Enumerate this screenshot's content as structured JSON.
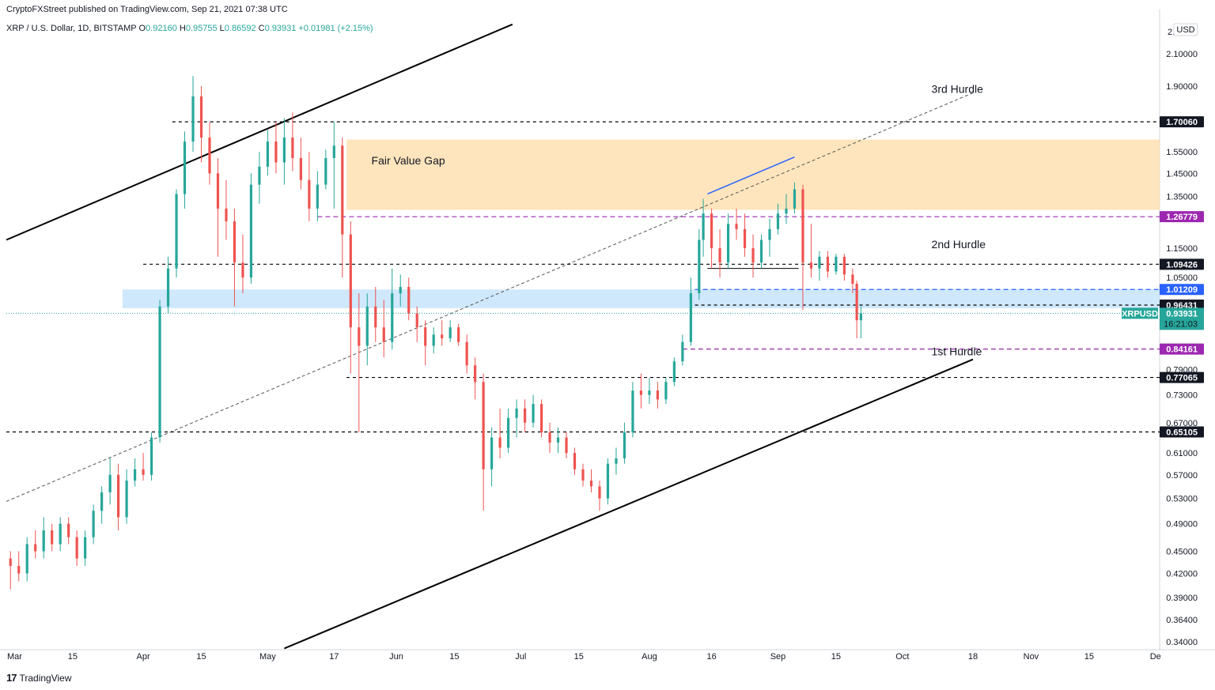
{
  "header": {
    "publisher": "CryptoFXStreet published on TradingView.com, Sep 21, 2021 07:38 UTC",
    "symbol": "XRP / U.S. Dollar, 1D, BITSTAMP",
    "ohlc": {
      "o_label": "O",
      "o": "0.92160",
      "h_label": "H",
      "h": "0.95755",
      "l_label": "L",
      "l": "0.86592",
      "c_label": "C",
      "c": "0.93931",
      "change": "+0.01981 (+2.15%)"
    }
  },
  "footer": {
    "brand": "TradingView",
    "logo": "17"
  },
  "currency_badge": "USD",
  "colors": {
    "up": "#26a69a",
    "down": "#ef5350",
    "fvg": "#ffe0b2",
    "blue_zone": "#bbdefb",
    "purple": "#9c27b0",
    "blue": "#2962ff"
  },
  "chart_data": {
    "type": "candlestick",
    "symbol": "XRPUSD",
    "scale": "log",
    "ylim": [
      0.335,
      2.35
    ],
    "xlim": [
      "2021-02-27",
      "2021-12-02"
    ],
    "y_ticks": [
      "2.10000",
      "1.90000",
      "1.55000",
      "1.45000",
      "1.35000",
      "1.15000",
      "1.05000",
      "0.79000",
      "0.73000",
      "0.67000",
      "0.61000",
      "0.57000",
      "0.53000",
      "0.49000",
      "0.45000",
      "0.42000",
      "0.39000",
      "0.36400",
      "0.34000"
    ],
    "y_tick_values": [
      2.1,
      1.9,
      1.55,
      1.45,
      1.35,
      1.15,
      1.05,
      0.79,
      0.73,
      0.67,
      0.61,
      0.57,
      0.53,
      0.49,
      0.45,
      0.42,
      0.39,
      0.364,
      0.34
    ],
    "top_tick": "2.",
    "x_ticks": [
      {
        "label": "Mar",
        "date": "2021-03-01"
      },
      {
        "label": "15",
        "date": "2021-03-15"
      },
      {
        "label": "Apr",
        "date": "2021-04-01"
      },
      {
        "label": "15",
        "date": "2021-04-15"
      },
      {
        "label": "May",
        "date": "2021-05-01"
      },
      {
        "label": "17",
        "date": "2021-05-17"
      },
      {
        "label": "Jun",
        "date": "2021-06-01"
      },
      {
        "label": "15",
        "date": "2021-06-15"
      },
      {
        "label": "Jul",
        "date": "2021-07-01"
      },
      {
        "label": "15",
        "date": "2021-07-15"
      },
      {
        "label": "Aug",
        "date": "2021-08-01"
      },
      {
        "label": "16",
        "date": "2021-08-16"
      },
      {
        "label": "Sep",
        "date": "2021-09-01"
      },
      {
        "label": "15",
        "date": "2021-09-15"
      },
      {
        "label": "Oct",
        "date": "2021-10-01"
      },
      {
        "label": "18",
        "date": "2021-10-18"
      },
      {
        "label": "Nov",
        "date": "2021-11-01"
      },
      {
        "label": "15",
        "date": "2021-11-15"
      },
      {
        "label": "De",
        "date": "2021-12-01"
      }
    ],
    "levels": [
      {
        "value": 1.7006,
        "label": "1.70060",
        "style": "black-dashed",
        "start": "2021-04-08"
      },
      {
        "value": 1.26779,
        "label": "1.26779",
        "style": "purple-dashed",
        "start": "2021-05-13"
      },
      {
        "value": 1.09426,
        "label": "1.09426",
        "style": "black-dashed",
        "start": "2021-04-01"
      },
      {
        "value": 1.01209,
        "label": "1.01209",
        "style": "blue-dashed",
        "start": "2021-08-12"
      },
      {
        "value": 0.96431,
        "label": "0.96431",
        "style": "black-dashed",
        "start": "2021-08-12"
      },
      {
        "value": 0.84161,
        "label": "0.84161",
        "style": "purple-dashed",
        "start": "2021-08-09"
      },
      {
        "value": 0.77065,
        "label": "0.77065",
        "style": "black-dashed",
        "start": "2021-05-20"
      },
      {
        "value": 0.65105,
        "label": "0.65105",
        "style": "black-dashed",
        "start": "2021-02-27"
      }
    ],
    "last_price": {
      "label": "XRPUSD",
      "value": "0.93931",
      "countdown": "16:21:03"
    },
    "zones": [
      {
        "name": "Fair Value Gap",
        "from": "2021-05-20",
        "to": "2021-12-02",
        "low": 1.295,
        "high": 1.61
      },
      {
        "name": "",
        "from": "2021-03-27",
        "to": "2021-12-02",
        "low": 0.955,
        "high": 1.012
      }
    ],
    "annotations": [
      {
        "text": "Fair Value Gap",
        "date": "2021-05-26",
        "value": 1.49
      },
      {
        "text": "3rd Hurdle",
        "date": "2021-10-08",
        "value": 1.86
      },
      {
        "text": "2nd Hurdle",
        "date": "2021-10-08",
        "value": 1.15
      },
      {
        "text": "1st Hurdle",
        "date": "2021-10-08",
        "value": 0.825
      }
    ],
    "trendlines": [
      {
        "style": "solid-black",
        "from": {
          "date": "2021-02-27",
          "value": 1.18
        },
        "to": {
          "date": "2021-06-29",
          "value": 2.3
        }
      },
      {
        "style": "solid-black",
        "from": {
          "date": "2021-05-05",
          "value": 0.333
        },
        "to": {
          "date": "2021-10-18",
          "value": 0.815
        }
      },
      {
        "style": "dashed-gray",
        "from": {
          "date": "2021-02-27",
          "value": 0.525
        },
        "to": {
          "date": "2021-10-18",
          "value": 1.86
        }
      },
      {
        "style": "solid-blue",
        "from": {
          "date": "2021-08-15",
          "value": 1.36
        },
        "to": {
          "date": "2021-09-05",
          "value": 1.525
        }
      },
      {
        "style": "solid-black-thin",
        "from": {
          "date": "2021-08-15",
          "value": 1.08
        },
        "to": {
          "date": "2021-09-06",
          "value": 1.08
        }
      }
    ],
    "candles": [
      {
        "d": "2021-02-28",
        "o": 0.44,
        "h": 0.45,
        "l": 0.4,
        "c": 0.43
      },
      {
        "d": "2021-03-02",
        "o": 0.43,
        "h": 0.45,
        "l": 0.41,
        "c": 0.42
      },
      {
        "d": "2021-03-04",
        "o": 0.42,
        "h": 0.47,
        "l": 0.41,
        "c": 0.46
      },
      {
        "d": "2021-03-06",
        "o": 0.46,
        "h": 0.48,
        "l": 0.44,
        "c": 0.45
      },
      {
        "d": "2021-03-08",
        "o": 0.45,
        "h": 0.5,
        "l": 0.44,
        "c": 0.48
      },
      {
        "d": "2021-03-10",
        "o": 0.48,
        "h": 0.49,
        "l": 0.45,
        "c": 0.46
      },
      {
        "d": "2021-03-12",
        "o": 0.46,
        "h": 0.5,
        "l": 0.45,
        "c": 0.49
      },
      {
        "d": "2021-03-14",
        "o": 0.49,
        "h": 0.5,
        "l": 0.46,
        "c": 0.47
      },
      {
        "d": "2021-03-16",
        "o": 0.47,
        "h": 0.48,
        "l": 0.43,
        "c": 0.44
      },
      {
        "d": "2021-03-18",
        "o": 0.44,
        "h": 0.48,
        "l": 0.43,
        "c": 0.47
      },
      {
        "d": "2021-03-20",
        "o": 0.47,
        "h": 0.52,
        "l": 0.46,
        "c": 0.51
      },
      {
        "d": "2021-03-22",
        "o": 0.51,
        "h": 0.55,
        "l": 0.49,
        "c": 0.54
      },
      {
        "d": "2021-03-24",
        "o": 0.54,
        "h": 0.6,
        "l": 0.52,
        "c": 0.57
      },
      {
        "d": "2021-03-26",
        "o": 0.57,
        "h": 0.59,
        "l": 0.48,
        "c": 0.5
      },
      {
        "d": "2021-03-28",
        "o": 0.5,
        "h": 0.58,
        "l": 0.49,
        "c": 0.56
      },
      {
        "d": "2021-03-30",
        "o": 0.56,
        "h": 0.6,
        "l": 0.55,
        "c": 0.58
      },
      {
        "d": "2021-04-01",
        "o": 0.58,
        "h": 0.61,
        "l": 0.56,
        "c": 0.57
      },
      {
        "d": "2021-04-03",
        "o": 0.57,
        "h": 0.65,
        "l": 0.56,
        "c": 0.64
      },
      {
        "d": "2021-04-05",
        "o": 0.64,
        "h": 0.98,
        "l": 0.63,
        "c": 0.96
      },
      {
        "d": "2021-04-07",
        "o": 0.96,
        "h": 1.12,
        "l": 0.94,
        "c": 1.08
      },
      {
        "d": "2021-04-09",
        "o": 1.08,
        "h": 1.38,
        "l": 1.05,
        "c": 1.36
      },
      {
        "d": "2021-04-11",
        "o": 1.36,
        "h": 1.65,
        "l": 1.3,
        "c": 1.6
      },
      {
        "d": "2021-04-13",
        "o": 1.6,
        "h": 1.96,
        "l": 1.55,
        "c": 1.84
      },
      {
        "d": "2021-04-15",
        "o": 1.84,
        "h": 1.9,
        "l": 1.5,
        "c": 1.62
      },
      {
        "d": "2021-04-17",
        "o": 1.62,
        "h": 1.7,
        "l": 1.4,
        "c": 1.45
      },
      {
        "d": "2021-04-19",
        "o": 1.45,
        "h": 1.52,
        "l": 1.12,
        "c": 1.3
      },
      {
        "d": "2021-04-21",
        "o": 1.3,
        "h": 1.42,
        "l": 1.18,
        "c": 1.25
      },
      {
        "d": "2021-04-23",
        "o": 1.25,
        "h": 1.3,
        "l": 0.96,
        "c": 1.1
      },
      {
        "d": "2021-04-25",
        "o": 1.1,
        "h": 1.2,
        "l": 1.0,
        "c": 1.05
      },
      {
        "d": "2021-04-27",
        "o": 1.05,
        "h": 1.45,
        "l": 1.03,
        "c": 1.4
      },
      {
        "d": "2021-04-29",
        "o": 1.4,
        "h": 1.55,
        "l": 1.32,
        "c": 1.48
      },
      {
        "d": "2021-05-01",
        "o": 1.48,
        "h": 1.66,
        "l": 1.44,
        "c": 1.6
      },
      {
        "d": "2021-05-03",
        "o": 1.6,
        "h": 1.7,
        "l": 1.45,
        "c": 1.5
      },
      {
        "d": "2021-05-05",
        "o": 1.5,
        "h": 1.72,
        "l": 1.4,
        "c": 1.62
      },
      {
        "d": "2021-05-07",
        "o": 1.62,
        "h": 1.75,
        "l": 1.46,
        "c": 1.52
      },
      {
        "d": "2021-05-09",
        "o": 1.52,
        "h": 1.62,
        "l": 1.38,
        "c": 1.42
      },
      {
        "d": "2021-05-11",
        "o": 1.42,
        "h": 1.55,
        "l": 1.25,
        "c": 1.3
      },
      {
        "d": "2021-05-13",
        "o": 1.3,
        "h": 1.46,
        "l": 1.25,
        "c": 1.4
      },
      {
        "d": "2021-05-15",
        "o": 1.4,
        "h": 1.56,
        "l": 1.38,
        "c": 1.52
      },
      {
        "d": "2021-05-17",
        "o": 1.52,
        "h": 1.7,
        "l": 1.3,
        "c": 1.58
      },
      {
        "d": "2021-05-19",
        "o": 1.58,
        "h": 1.62,
        "l": 1.05,
        "c": 1.2
      },
      {
        "d": "2021-05-21",
        "o": 1.2,
        "h": 1.25,
        "l": 0.78,
        "c": 0.9
      },
      {
        "d": "2021-05-23",
        "o": 0.9,
        "h": 1.0,
        "l": 0.65,
        "c": 0.85
      },
      {
        "d": "2021-05-25",
        "o": 0.85,
        "h": 1.0,
        "l": 0.8,
        "c": 0.96
      },
      {
        "d": "2021-05-27",
        "o": 0.96,
        "h": 1.02,
        "l": 0.86,
        "c": 0.9
      },
      {
        "d": "2021-05-29",
        "o": 0.9,
        "h": 0.98,
        "l": 0.82,
        "c": 0.86
      },
      {
        "d": "2021-05-31",
        "o": 0.86,
        "h": 1.08,
        "l": 0.84,
        "c": 1.0
      },
      {
        "d": "2021-06-02",
        "o": 1.0,
        "h": 1.06,
        "l": 0.96,
        "c": 1.02
      },
      {
        "d": "2021-06-04",
        "o": 1.02,
        "h": 1.05,
        "l": 0.92,
        "c": 0.94
      },
      {
        "d": "2021-06-06",
        "o": 0.94,
        "h": 0.96,
        "l": 0.86,
        "c": 0.9
      },
      {
        "d": "2021-06-08",
        "o": 0.9,
        "h": 0.92,
        "l": 0.8,
        "c": 0.85
      },
      {
        "d": "2021-06-10",
        "o": 0.85,
        "h": 0.9,
        "l": 0.83,
        "c": 0.88
      },
      {
        "d": "2021-06-12",
        "o": 0.88,
        "h": 0.92,
        "l": 0.85,
        "c": 0.87
      },
      {
        "d": "2021-06-14",
        "o": 0.87,
        "h": 0.92,
        "l": 0.86,
        "c": 0.9
      },
      {
        "d": "2021-06-16",
        "o": 0.9,
        "h": 0.91,
        "l": 0.85,
        "c": 0.86
      },
      {
        "d": "2021-06-18",
        "o": 0.86,
        "h": 0.88,
        "l": 0.78,
        "c": 0.8
      },
      {
        "d": "2021-06-20",
        "o": 0.8,
        "h": 0.82,
        "l": 0.72,
        "c": 0.76
      },
      {
        "d": "2021-06-22",
        "o": 0.76,
        "h": 0.78,
        "l": 0.51,
        "c": 0.58
      },
      {
        "d": "2021-06-24",
        "o": 0.58,
        "h": 0.66,
        "l": 0.55,
        "c": 0.64
      },
      {
        "d": "2021-06-26",
        "o": 0.64,
        "h": 0.7,
        "l": 0.6,
        "c": 0.62
      },
      {
        "d": "2021-06-28",
        "o": 0.62,
        "h": 0.7,
        "l": 0.61,
        "c": 0.68
      },
      {
        "d": "2021-06-30",
        "o": 0.68,
        "h": 0.72,
        "l": 0.64,
        "c": 0.7
      },
      {
        "d": "2021-07-02",
        "o": 0.7,
        "h": 0.72,
        "l": 0.65,
        "c": 0.67
      },
      {
        "d": "2021-07-04",
        "o": 0.67,
        "h": 0.73,
        "l": 0.66,
        "c": 0.71
      },
      {
        "d": "2021-07-06",
        "o": 0.71,
        "h": 0.72,
        "l": 0.64,
        "c": 0.65
      },
      {
        "d": "2021-07-08",
        "o": 0.65,
        "h": 0.67,
        "l": 0.61,
        "c": 0.63
      },
      {
        "d": "2021-07-10",
        "o": 0.63,
        "h": 0.66,
        "l": 0.61,
        "c": 0.64
      },
      {
        "d": "2021-07-12",
        "o": 0.64,
        "h": 0.65,
        "l": 0.6,
        "c": 0.61
      },
      {
        "d": "2021-07-14",
        "o": 0.61,
        "h": 0.62,
        "l": 0.57,
        "c": 0.58
      },
      {
        "d": "2021-07-16",
        "o": 0.58,
        "h": 0.59,
        "l": 0.55,
        "c": 0.56
      },
      {
        "d": "2021-07-18",
        "o": 0.56,
        "h": 0.58,
        "l": 0.54,
        "c": 0.55
      },
      {
        "d": "2021-07-20",
        "o": 0.55,
        "h": 0.56,
        "l": 0.51,
        "c": 0.53
      },
      {
        "d": "2021-07-22",
        "o": 0.53,
        "h": 0.6,
        "l": 0.52,
        "c": 0.59
      },
      {
        "d": "2021-07-24",
        "o": 0.59,
        "h": 0.62,
        "l": 0.57,
        "c": 0.6
      },
      {
        "d": "2021-07-26",
        "o": 0.6,
        "h": 0.67,
        "l": 0.59,
        "c": 0.65
      },
      {
        "d": "2021-07-28",
        "o": 0.65,
        "h": 0.76,
        "l": 0.64,
        "c": 0.74
      },
      {
        "d": "2021-07-30",
        "o": 0.74,
        "h": 0.78,
        "l": 0.7,
        "c": 0.73
      },
      {
        "d": "2021-08-01",
        "o": 0.73,
        "h": 0.77,
        "l": 0.71,
        "c": 0.74
      },
      {
        "d": "2021-08-03",
        "o": 0.74,
        "h": 0.76,
        "l": 0.7,
        "c": 0.72
      },
      {
        "d": "2021-08-05",
        "o": 0.72,
        "h": 0.77,
        "l": 0.71,
        "c": 0.76
      },
      {
        "d": "2021-08-07",
        "o": 0.76,
        "h": 0.82,
        "l": 0.75,
        "c": 0.81
      },
      {
        "d": "2021-08-09",
        "o": 0.81,
        "h": 0.88,
        "l": 0.8,
        "c": 0.86
      },
      {
        "d": "2021-08-11",
        "o": 0.86,
        "h": 1.05,
        "l": 0.85,
        "c": 1.0
      },
      {
        "d": "2021-08-13",
        "o": 1.0,
        "h": 1.22,
        "l": 0.98,
        "c": 1.18
      },
      {
        "d": "2021-08-14",
        "o": 1.18,
        "h": 1.34,
        "l": 1.12,
        "c": 1.28
      },
      {
        "d": "2021-08-16",
        "o": 1.28,
        "h": 1.3,
        "l": 1.08,
        "c": 1.15
      },
      {
        "d": "2021-08-18",
        "o": 1.15,
        "h": 1.22,
        "l": 1.05,
        "c": 1.1
      },
      {
        "d": "2021-08-20",
        "o": 1.1,
        "h": 1.28,
        "l": 1.08,
        "c": 1.24
      },
      {
        "d": "2021-08-22",
        "o": 1.24,
        "h": 1.3,
        "l": 1.18,
        "c": 1.22
      },
      {
        "d": "2021-08-24",
        "o": 1.22,
        "h": 1.28,
        "l": 1.12,
        "c": 1.15
      },
      {
        "d": "2021-08-26",
        "o": 1.15,
        "h": 1.2,
        "l": 1.05,
        "c": 1.1
      },
      {
        "d": "2021-08-28",
        "o": 1.1,
        "h": 1.2,
        "l": 1.08,
        "c": 1.18
      },
      {
        "d": "2021-08-30",
        "o": 1.18,
        "h": 1.26,
        "l": 1.12,
        "c": 1.22
      },
      {
        "d": "2021-09-01",
        "o": 1.22,
        "h": 1.32,
        "l": 1.2,
        "c": 1.28
      },
      {
        "d": "2021-09-03",
        "o": 1.28,
        "h": 1.36,
        "l": 1.24,
        "c": 1.3
      },
      {
        "d": "2021-09-05",
        "o": 1.3,
        "h": 1.41,
        "l": 1.28,
        "c": 1.38
      },
      {
        "d": "2021-09-07",
        "o": 1.38,
        "h": 1.4,
        "l": 0.95,
        "c": 1.1
      },
      {
        "d": "2021-09-09",
        "o": 1.1,
        "h": 1.24,
        "l": 1.05,
        "c": 1.08
      },
      {
        "d": "2021-09-11",
        "o": 1.08,
        "h": 1.14,
        "l": 1.04,
        "c": 1.12
      },
      {
        "d": "2021-09-13",
        "o": 1.12,
        "h": 1.14,
        "l": 1.05,
        "c": 1.07
      },
      {
        "d": "2021-09-15",
        "o": 1.07,
        "h": 1.13,
        "l": 1.06,
        "c": 1.12
      },
      {
        "d": "2021-09-17",
        "o": 1.12,
        "h": 1.13,
        "l": 1.04,
        "c": 1.06
      },
      {
        "d": "2021-09-19",
        "o": 1.06,
        "h": 1.08,
        "l": 1.0,
        "c": 1.03
      },
      {
        "d": "2021-09-20",
        "o": 1.03,
        "h": 1.04,
        "l": 0.87,
        "c": 0.92
      },
      {
        "d": "2021-09-21",
        "o": 0.92,
        "h": 0.96,
        "l": 0.87,
        "c": 0.94
      }
    ]
  }
}
